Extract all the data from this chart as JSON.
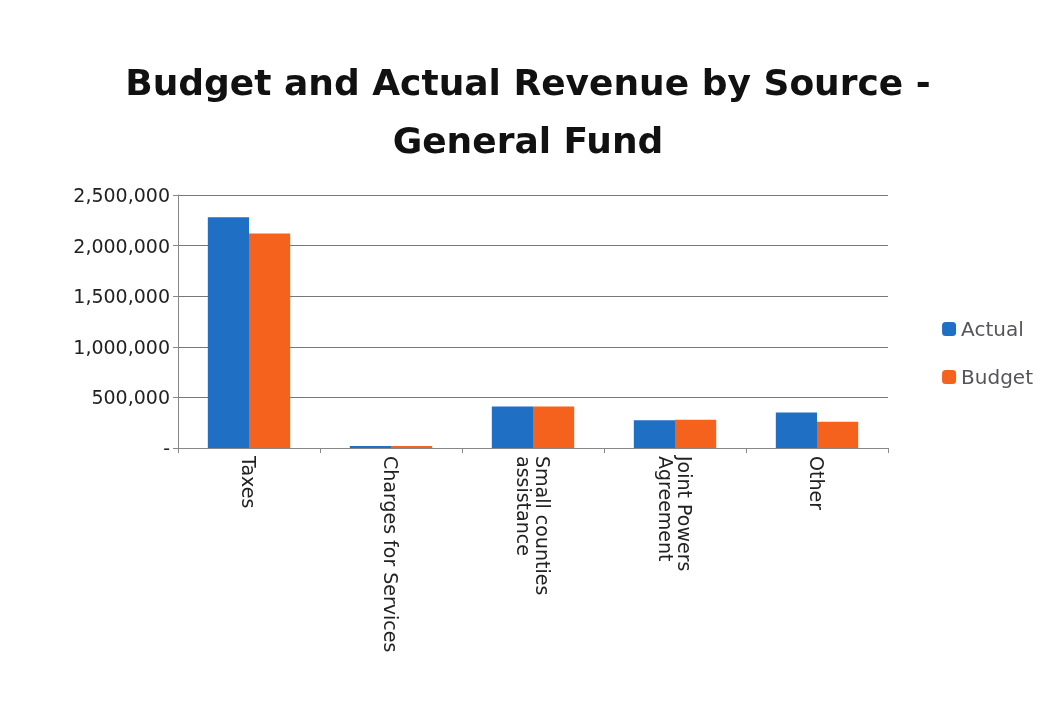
{
  "chart_data": {
    "type": "bar",
    "title": "Budget and Actual Revenue by Source -\nGeneral Fund",
    "categories": [
      "Taxes",
      "Charges for Services",
      "Small counties assistance",
      "Joint Powers Agreement",
      "Other"
    ],
    "series": [
      {
        "name": "Actual",
        "color": "#1f6fc5",
        "values": [
          2280000,
          20000,
          410000,
          275000,
          350000
        ]
      },
      {
        "name": "Budget",
        "color": "#f5621d",
        "values": [
          2120000,
          20000,
          410000,
          280000,
          260000
        ]
      }
    ],
    "ylim": [
      0,
      2500000
    ],
    "yticks": [
      {
        "value": 0,
        "label": "-"
      },
      {
        "value": 500000,
        "label": "500,000"
      },
      {
        "value": 1000000,
        "label": "1,000,000"
      },
      {
        "value": 1500000,
        "label": "1,500,000"
      },
      {
        "value": 2000000,
        "label": "2,000,000"
      },
      {
        "value": 2500000,
        "label": "2,500,000"
      }
    ],
    "grid": "y",
    "legend": "right"
  }
}
